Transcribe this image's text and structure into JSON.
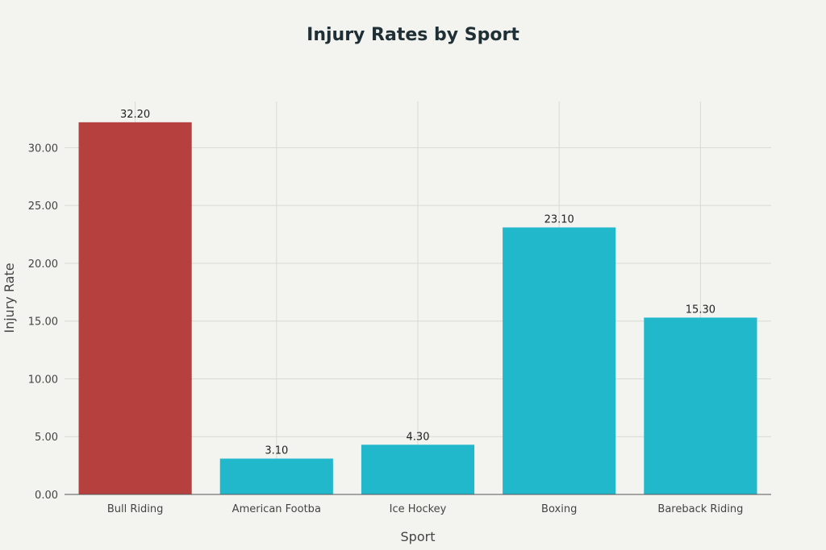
{
  "chart_data": {
    "type": "bar",
    "title": "Injury Rates by Sport",
    "xlabel": "Sport",
    "ylabel": "Injury Rate",
    "categories": [
      "Bull Riding",
      "American Footba",
      "Ice Hockey",
      "Boxing",
      "Bareback Riding"
    ],
    "values": [
      32.2,
      3.1,
      4.3,
      23.1,
      15.3
    ],
    "value_labels": [
      "32.20",
      "3.10",
      "4.30",
      "23.10",
      "15.30"
    ],
    "yticks": [
      0,
      5,
      10,
      15,
      20,
      25,
      30
    ],
    "ytick_labels": [
      "0.00",
      "5.00",
      "10.00",
      "15.00",
      "20.00",
      "25.00",
      "30.00"
    ],
    "ylim": [
      0,
      34
    ],
    "grid": true,
    "legend": "none",
    "colors": {
      "highlight": "#b5403d",
      "default": "#21b8cc",
      "background": "#f3f3ef",
      "grid": "#d9d9d4",
      "axis": "#555555",
      "text": "#444444",
      "title": "#1f2f36"
    },
    "highlight_index": 0
  }
}
